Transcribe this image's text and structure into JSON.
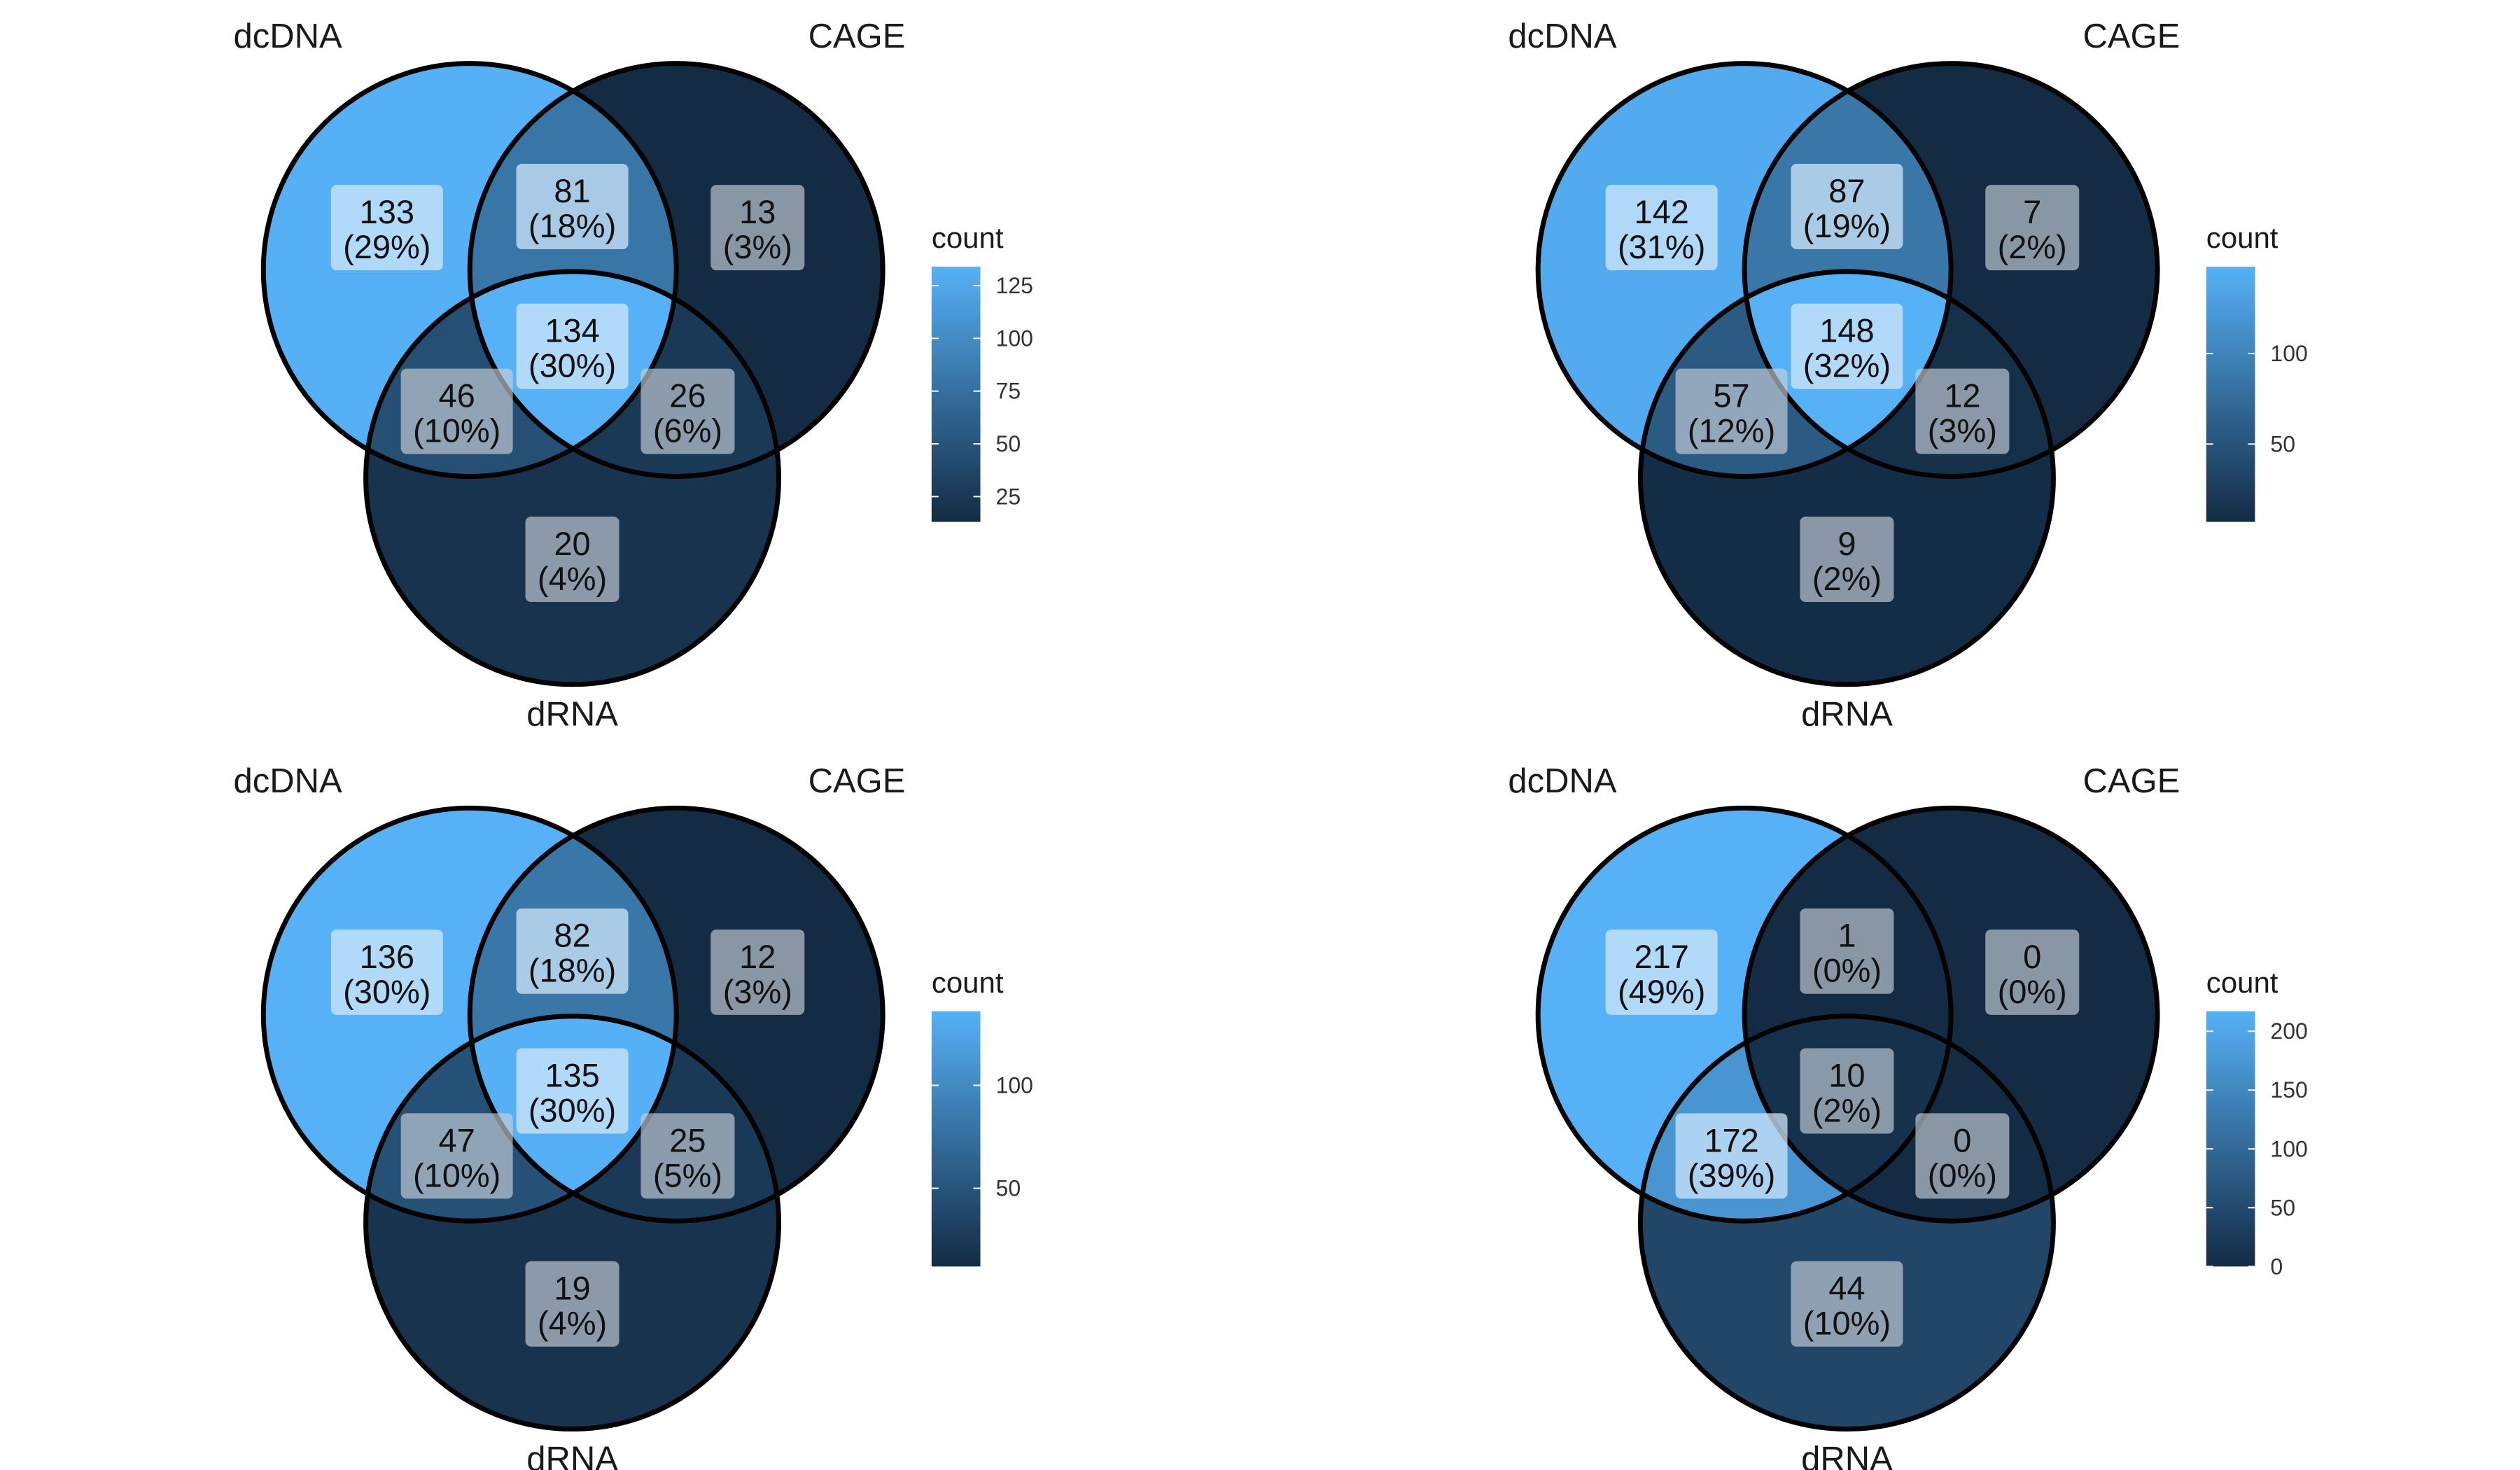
{
  "legend": {
    "title": "count",
    "low_color": "#132B43",
    "high_color": "#56B1F7"
  },
  "chart_data": [
    {
      "type": "venn",
      "sets": [
        "dcDNA",
        "CAGE",
        "dRNA"
      ],
      "regions": [
        {
          "sets": [
            "dcDNA"
          ],
          "count": 133,
          "percent": "(29%)"
        },
        {
          "sets": [
            "CAGE"
          ],
          "count": 13,
          "percent": "(3%)"
        },
        {
          "sets": [
            "dRNA"
          ],
          "count": 20,
          "percent": "(4%)"
        },
        {
          "sets": [
            "dcDNA",
            "CAGE"
          ],
          "count": 81,
          "percent": "(18%)"
        },
        {
          "sets": [
            "dcDNA",
            "dRNA"
          ],
          "count": 46,
          "percent": "(10%)"
        },
        {
          "sets": [
            "CAGE",
            "dRNA"
          ],
          "count": 26,
          "percent": "(6%)"
        },
        {
          "sets": [
            "dcDNA",
            "CAGE",
            "dRNA"
          ],
          "count": 134,
          "percent": "(30%)"
        }
      ],
      "color_scale": {
        "min": 13,
        "max": 134,
        "ticks": [
          25,
          50,
          75,
          100,
          125
        ]
      }
    },
    {
      "type": "venn",
      "sets": [
        "dcDNA",
        "CAGE",
        "dRNA"
      ],
      "regions": [
        {
          "sets": [
            "dcDNA"
          ],
          "count": 142,
          "percent": "(31%)"
        },
        {
          "sets": [
            "CAGE"
          ],
          "count": 7,
          "percent": "(2%)"
        },
        {
          "sets": [
            "dRNA"
          ],
          "count": 9,
          "percent": "(2%)"
        },
        {
          "sets": [
            "dcDNA",
            "CAGE"
          ],
          "count": 87,
          "percent": "(19%)"
        },
        {
          "sets": [
            "dcDNA",
            "dRNA"
          ],
          "count": 57,
          "percent": "(12%)"
        },
        {
          "sets": [
            "CAGE",
            "dRNA"
          ],
          "count": 12,
          "percent": "(3%)"
        },
        {
          "sets": [
            "dcDNA",
            "CAGE",
            "dRNA"
          ],
          "count": 148,
          "percent": "(32%)"
        }
      ],
      "color_scale": {
        "min": 7,
        "max": 148,
        "ticks": [
          50,
          100
        ]
      }
    },
    {
      "type": "venn",
      "sets": [
        "dcDNA",
        "CAGE",
        "dRNA"
      ],
      "regions": [
        {
          "sets": [
            "dcDNA"
          ],
          "count": 136,
          "percent": "(30%)"
        },
        {
          "sets": [
            "CAGE"
          ],
          "count": 12,
          "percent": "(3%)"
        },
        {
          "sets": [
            "dRNA"
          ],
          "count": 19,
          "percent": "(4%)"
        },
        {
          "sets": [
            "dcDNA",
            "CAGE"
          ],
          "count": 82,
          "percent": "(18%)"
        },
        {
          "sets": [
            "dcDNA",
            "dRNA"
          ],
          "count": 47,
          "percent": "(10%)"
        },
        {
          "sets": [
            "CAGE",
            "dRNA"
          ],
          "count": 25,
          "percent": "(5%)"
        },
        {
          "sets": [
            "dcDNA",
            "CAGE",
            "dRNA"
          ],
          "count": 135,
          "percent": "(30%)"
        }
      ],
      "color_scale": {
        "min": 12,
        "max": 136,
        "ticks": [
          50,
          100
        ]
      }
    },
    {
      "type": "venn",
      "sets": [
        "dcDNA",
        "CAGE",
        "dRNA"
      ],
      "regions": [
        {
          "sets": [
            "dcDNA"
          ],
          "count": 217,
          "percent": "(49%)"
        },
        {
          "sets": [
            "CAGE"
          ],
          "count": 0,
          "percent": "(0%)"
        },
        {
          "sets": [
            "dRNA"
          ],
          "count": 44,
          "percent": "(10%)"
        },
        {
          "sets": [
            "dcDNA",
            "CAGE"
          ],
          "count": 1,
          "percent": "(0%)"
        },
        {
          "sets": [
            "dcDNA",
            "dRNA"
          ],
          "count": 172,
          "percent": "(39%)"
        },
        {
          "sets": [
            "CAGE",
            "dRNA"
          ],
          "count": 0,
          "percent": "(0%)"
        },
        {
          "sets": [
            "dcDNA",
            "CAGE",
            "dRNA"
          ],
          "count": 10,
          "percent": "(2%)"
        }
      ],
      "color_scale": {
        "min": 0,
        "max": 217,
        "ticks": [
          0,
          50,
          100,
          150,
          200
        ]
      }
    }
  ]
}
